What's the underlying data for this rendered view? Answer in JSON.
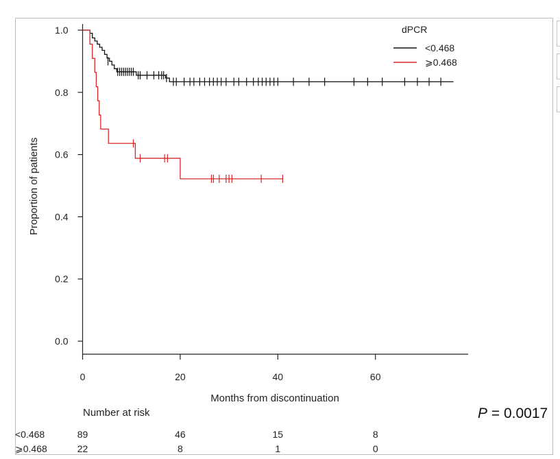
{
  "chart_data": {
    "type": "line",
    "title": "",
    "xlabel": "Months from discontinuation",
    "ylabel": "Proportion of patients",
    "xlim": [
      0,
      79
    ],
    "ylim": [
      0,
      1.0
    ],
    "xticks": [
      0,
      20,
      40,
      60
    ],
    "yticks": [
      0.0,
      0.2,
      0.4,
      0.6,
      0.8,
      1.0
    ],
    "xtick_labels": [
      "0",
      "20",
      "40",
      "60"
    ],
    "ytick_labels": [
      "0.0",
      "0.2",
      "0.4",
      "0.6",
      "0.8",
      "1.0"
    ],
    "legend": {
      "title": "dPCR",
      "position": "top-right"
    },
    "series": [
      {
        "name": "<0.468",
        "color": "#111111",
        "steps": [
          [
            0,
            1.0
          ],
          [
            1.5,
            0.99
          ],
          [
            2.0,
            0.975
          ],
          [
            2.5,
            0.965
          ],
          [
            3.0,
            0.955
          ],
          [
            3.5,
            0.945
          ],
          [
            4.0,
            0.935
          ],
          [
            4.5,
            0.922
          ],
          [
            5.0,
            0.91
          ],
          [
            5.5,
            0.9
          ],
          [
            6.0,
            0.888
          ],
          [
            6.5,
            0.876
          ],
          [
            7.0,
            0.866
          ],
          [
            11.0,
            0.855
          ],
          [
            17.0,
            0.846
          ],
          [
            17.8,
            0.834
          ],
          [
            76.0,
            0.834
          ]
        ],
        "censored": [
          [
            5.2,
            0.9
          ],
          [
            7.2,
            0.866
          ],
          [
            7.6,
            0.866
          ],
          [
            8.0,
            0.866
          ],
          [
            8.4,
            0.866
          ],
          [
            8.8,
            0.866
          ],
          [
            9.2,
            0.866
          ],
          [
            9.6,
            0.866
          ],
          [
            10.0,
            0.866
          ],
          [
            10.4,
            0.866
          ],
          [
            11.4,
            0.855
          ],
          [
            11.8,
            0.855
          ],
          [
            13.2,
            0.855
          ],
          [
            14.6,
            0.855
          ],
          [
            15.6,
            0.855
          ],
          [
            16.2,
            0.855
          ],
          [
            16.6,
            0.855
          ],
          [
            17.2,
            0.846
          ],
          [
            18.6,
            0.834
          ],
          [
            19.2,
            0.834
          ],
          [
            20.8,
            0.834
          ],
          [
            22.0,
            0.834
          ],
          [
            22.8,
            0.834
          ],
          [
            24.0,
            0.834
          ],
          [
            25.0,
            0.834
          ],
          [
            26.0,
            0.834
          ],
          [
            26.8,
            0.834
          ],
          [
            27.6,
            0.834
          ],
          [
            28.4,
            0.834
          ],
          [
            29.4,
            0.834
          ],
          [
            31.0,
            0.834
          ],
          [
            32.0,
            0.834
          ],
          [
            33.6,
            0.834
          ],
          [
            35.0,
            0.834
          ],
          [
            36.0,
            0.834
          ],
          [
            36.8,
            0.834
          ],
          [
            37.6,
            0.834
          ],
          [
            38.4,
            0.834
          ],
          [
            39.2,
            0.834
          ],
          [
            40.0,
            0.834
          ],
          [
            43.2,
            0.834
          ],
          [
            46.4,
            0.834
          ],
          [
            49.6,
            0.834
          ],
          [
            55.6,
            0.834
          ],
          [
            58.4,
            0.834
          ],
          [
            61.4,
            0.834
          ],
          [
            66.0,
            0.834
          ],
          [
            68.6,
            0.834
          ],
          [
            71.0,
            0.834
          ],
          [
            73.4,
            0.834
          ]
        ]
      },
      {
        "name": "⩾0.468",
        "color": "#d62728",
        "steps": [
          [
            0,
            1.0
          ],
          [
            1.5,
            0.955
          ],
          [
            2.0,
            0.909
          ],
          [
            2.5,
            0.864
          ],
          [
            2.8,
            0.818
          ],
          [
            3.1,
            0.773
          ],
          [
            3.4,
            0.727
          ],
          [
            3.7,
            0.682
          ],
          [
            5.3,
            0.636
          ],
          [
            10.8,
            0.588
          ],
          [
            20.0,
            0.522
          ],
          [
            41.0,
            0.522
          ]
        ],
        "censored": [
          [
            10.4,
            0.636
          ],
          [
            11.8,
            0.588
          ],
          [
            16.8,
            0.588
          ],
          [
            17.4,
            0.588
          ],
          [
            26.4,
            0.522
          ],
          [
            26.8,
            0.522
          ],
          [
            28.0,
            0.522
          ],
          [
            29.4,
            0.522
          ],
          [
            30.0,
            0.522
          ],
          [
            30.6,
            0.522
          ],
          [
            36.6,
            0.522
          ],
          [
            41.0,
            0.522
          ]
        ]
      }
    ],
    "risk_table": {
      "title": "Number at risk",
      "times": [
        0,
        20,
        40,
        60
      ],
      "rows": [
        {
          "label": "<0.468",
          "counts": [
            "89",
            "46",
            "15",
            "8"
          ]
        },
        {
          "label": "⩾0.468",
          "counts": [
            "22",
            "8",
            "1",
            "0"
          ]
        }
      ]
    }
  },
  "annotation": {
    "p_label": "P",
    "p_rest": " = 0.0017"
  }
}
